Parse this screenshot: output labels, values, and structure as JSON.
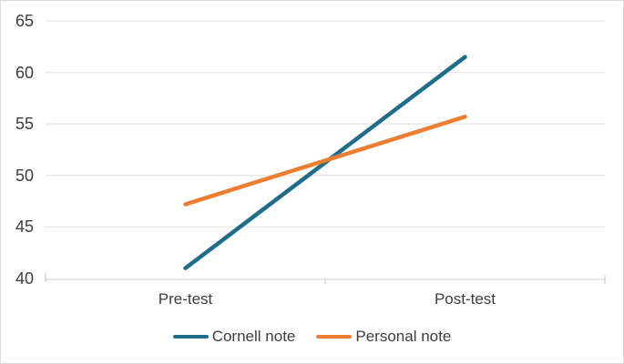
{
  "chart_data": {
    "type": "line",
    "categories": [
      "Pre-test",
      "Post-test"
    ],
    "series": [
      {
        "name": "Cornell note",
        "color": "#1f6c8b",
        "values": [
          41.0,
          61.5
        ]
      },
      {
        "name": "Personal note",
        "color": "#ed7d31",
        "values": [
          47.2,
          55.7
        ]
      }
    ],
    "ylim": [
      40,
      65
    ],
    "yticks": [
      40,
      45,
      50,
      55,
      60,
      65
    ],
    "xlabel": "",
    "ylabel": "",
    "title": "",
    "grid": "horizontal",
    "legend_position": "bottom"
  },
  "colors": {
    "gridline": "#e6e6e6",
    "axis_line": "#d9d9d9",
    "tick_mark": "#d0d0d0",
    "text": "#3d3d3d",
    "frame_border": "#d9d9d9",
    "background": "#ffffff"
  }
}
